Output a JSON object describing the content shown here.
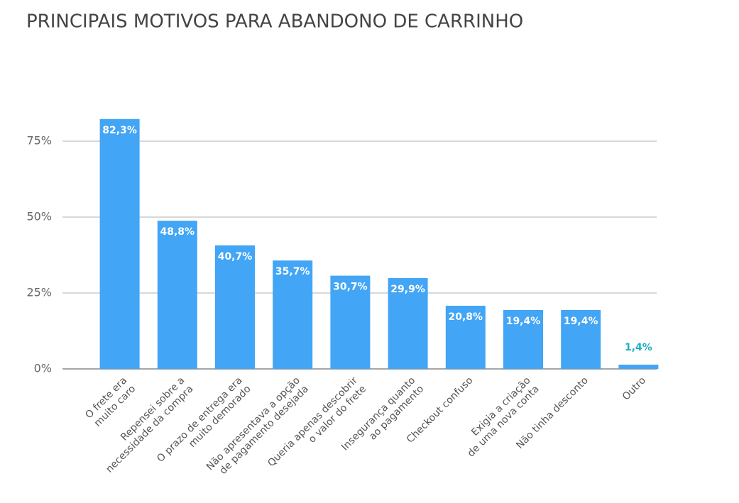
{
  "chart_data": {
    "type": "bar",
    "title": "PRINCIPAIS MOTIVOS PARA ABANDONO DE CARRINHO",
    "categories": [
      [
        "O frete era",
        "muito caro"
      ],
      [
        "Repensei sobre a",
        "necessidade da compra"
      ],
      [
        "O prazo de entrega era",
        "muito demorado"
      ],
      [
        "Não apresentava a opção",
        "de pagamento desejada"
      ],
      [
        "Queria apenas descobrir",
        "o valor do frete"
      ],
      [
        "Insegurança quanto",
        "ao pagamento"
      ],
      [
        "Checkout confuso"
      ],
      [
        "Exigia a criação",
        "de uma nova conta"
      ],
      [
        "Não tinha desconto"
      ],
      [
        "Outro"
      ]
    ],
    "values": [
      82.3,
      48.8,
      40.7,
      35.7,
      30.7,
      29.9,
      20.8,
      19.4,
      19.4,
      1.4
    ],
    "value_labels": [
      "82,3%",
      "48,8%",
      "40,7%",
      "35,7%",
      "30,7%",
      "29,9%",
      "20,8%",
      "19,4%",
      "19,4%",
      "1,4%"
    ],
    "color": "#42a5f5",
    "ylim": [
      0,
      100
    ],
    "yticks": [
      {
        "value": 0,
        "label": "0%"
      },
      {
        "value": 25,
        "label": "25%"
      },
      {
        "value": 50,
        "label": "50%"
      },
      {
        "value": 75,
        "label": "75%"
      }
    ],
    "grid": true
  }
}
